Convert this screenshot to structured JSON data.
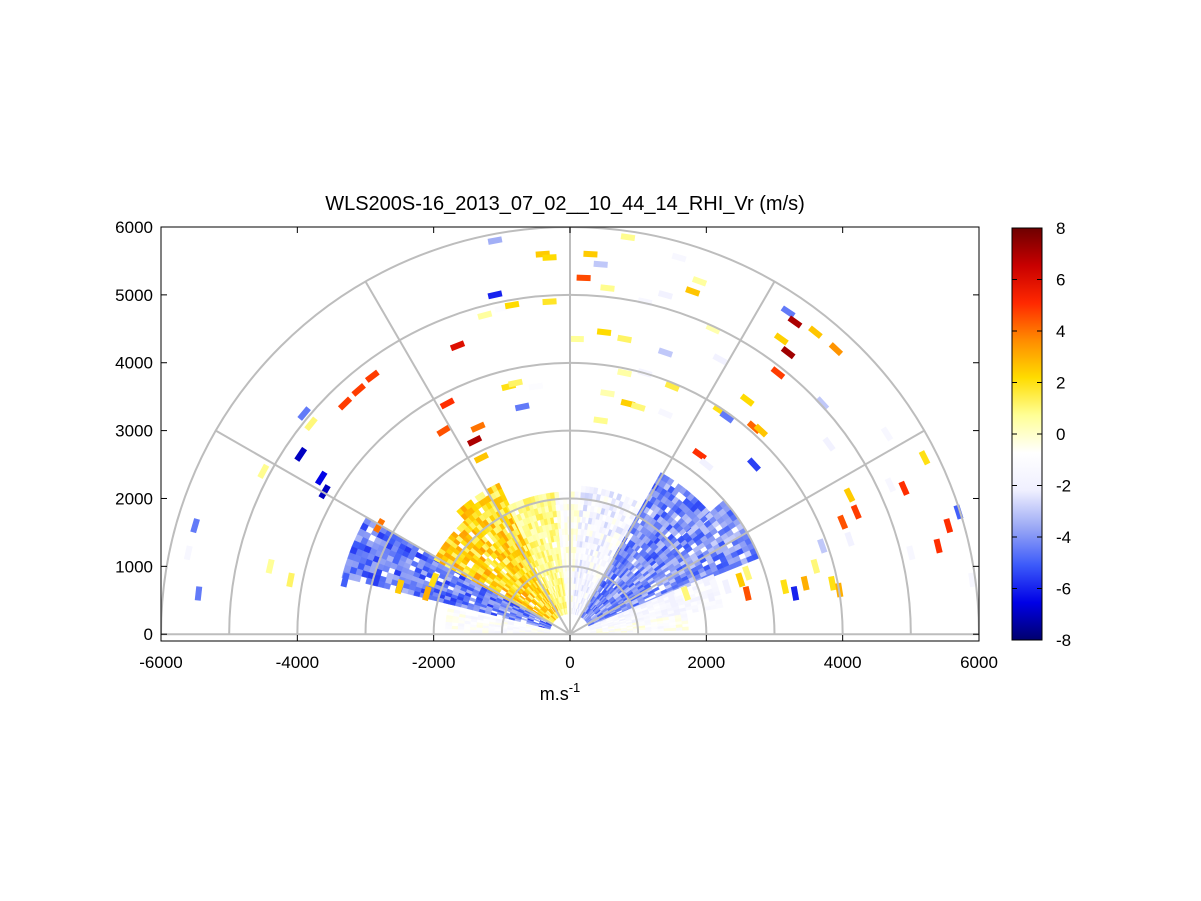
{
  "chart_data": {
    "type": "heatmap",
    "subtype": "polar RHI scan (range-height)",
    "title": "WLS200S-16_2013_07_02__10_44_14_RHI_Vr (m/s)",
    "xlabel_base": "m.s",
    "xlabel_sup": "-1",
    "ylabel": "",
    "xlim": [
      -6000,
      6000
    ],
    "ylim": [
      -100,
      6000
    ],
    "x_ticks": [
      "-6000",
      "-4000",
      "-2000",
      "0",
      "2000",
      "4000",
      "6000"
    ],
    "y_ticks": [
      "0",
      "1000",
      "2000",
      "3000",
      "4000",
      "5000",
      "6000"
    ],
    "range_rings": [
      1000,
      2000,
      3000,
      4000,
      5000,
      6000
    ],
    "spokes_deg": [
      0,
      30,
      60,
      90,
      120,
      150,
      180
    ],
    "grid": true,
    "colorbar": {
      "ticks": [
        "-8",
        "-6",
        "-4",
        "-2",
        "0",
        "2",
        "4",
        "6",
        "8"
      ],
      "range": [
        -8,
        8
      ],
      "colormap": [
        "#00006e",
        "#0000e6",
        "#3c5afa",
        "#9aa8f5",
        "#f0f0ff",
        "#ffffff",
        "#ffff96",
        "#ffdc00",
        "#ff8c00",
        "#ff2800",
        "#c80000",
        "#6e0000"
      ],
      "placement": "right"
    },
    "dense_region": [
      {
        "az_from": 150,
        "az_to": 165,
        "r_from": 300,
        "r_to": 3400,
        "vr": -4.5
      },
      {
        "az_from": 132,
        "az_to": 150,
        "r_from": 300,
        "r_to": 2200,
        "vr": 2.2
      },
      {
        "az_from": 115,
        "az_to": 132,
        "r_from": 300,
        "r_to": 2400,
        "vr": 2.0
      },
      {
        "az_from": 95,
        "az_to": 115,
        "r_from": 300,
        "r_to": 2050,
        "vr": 0.8
      },
      {
        "az_from": 85,
        "az_to": 95,
        "r_from": 300,
        "r_to": 2100,
        "vr": -0.6
      },
      {
        "az_from": 60,
        "az_to": 85,
        "r_from": 300,
        "r_to": 2150,
        "vr": -1.6
      },
      {
        "az_from": 40,
        "az_to": 60,
        "r_from": 300,
        "r_to": 2700,
        "vr": -4.2
      },
      {
        "az_from": 22,
        "az_to": 40,
        "r_from": 300,
        "r_to": 3000,
        "vr": -4.0
      },
      {
        "az_from": 10,
        "az_to": 22,
        "r_from": 300,
        "r_to": 2200,
        "vr": -1.4
      },
      {
        "az_from": 2,
        "az_to": 10,
        "r_from": 300,
        "r_to": 1700,
        "vr": -0.8
      },
      {
        "az_from": 168,
        "az_to": 178,
        "r_from": 300,
        "r_to": 1800,
        "vr": -1.0
      }
    ],
    "points": [
      {
        "x": -5500,
        "y": 1600,
        "vr": -4.5
      },
      {
        "x": -5600,
        "y": 1200,
        "vr": -1.5
      },
      {
        "x": -5450,
        "y": 600,
        "vr": -4.5
      },
      {
        "x": -4500,
        "y": 2400,
        "vr": 0.8
      },
      {
        "x": -4400,
        "y": 1000,
        "vr": 0.7
      },
      {
        "x": -4100,
        "y": 800,
        "vr": 1.2
      },
      {
        "x": -3900,
        "y": 3250,
        "vr": -4.5
      },
      {
        "x": -3950,
        "y": 2650,
        "vr": -7.0
      },
      {
        "x": -3650,
        "y": 2300,
        "vr": -6.5
      },
      {
        "x": -3600,
        "y": 2100,
        "vr": -7.0
      },
      {
        "x": -3800,
        "y": 3100,
        "vr": 1.0
      },
      {
        "x": -3300,
        "y": 3400,
        "vr": 4.8
      },
      {
        "x": -3100,
        "y": 3600,
        "vr": 4.8
      },
      {
        "x": -2900,
        "y": 3800,
        "vr": 4.8
      },
      {
        "x": -2300,
        "y": 1200,
        "vr": -4.5
      },
      {
        "x": -1800,
        "y": 3400,
        "vr": 5.0
      },
      {
        "x": -1850,
        "y": 3000,
        "vr": 4.5
      },
      {
        "x": -1650,
        "y": 4250,
        "vr": 6.0
      },
      {
        "x": -1100,
        "y": 5800,
        "vr": -3.5
      },
      {
        "x": -1100,
        "y": 5000,
        "vr": -6.0
      },
      {
        "x": -1000,
        "y": 4800,
        "vr": -1.0
      },
      {
        "x": -850,
        "y": 4850,
        "vr": 2.2
      },
      {
        "x": -1250,
        "y": 4700,
        "vr": 0.6
      },
      {
        "x": -400,
        "y": 5600,
        "vr": 2.5
      },
      {
        "x": -300,
        "y": 5550,
        "vr": 2.2
      },
      {
        "x": -300,
        "y": 4900,
        "vr": 1.8
      },
      {
        "x": -900,
        "y": 3650,
        "vr": 2.0
      },
      {
        "x": -800,
        "y": 3700,
        "vr": 1.2
      },
      {
        "x": -700,
        "y": 3350,
        "vr": -4.5
      },
      {
        "x": -1350,
        "y": 3050,
        "vr": 4.0
      },
      {
        "x": -1400,
        "y": 2850,
        "vr": 7.0
      },
      {
        "x": -1300,
        "y": 2600,
        "vr": 2.6
      },
      {
        "x": -500,
        "y": 3650,
        "vr": -1.0
      },
      {
        "x": 300,
        "y": 5600,
        "vr": 2.5
      },
      {
        "x": 450,
        "y": 5450,
        "vr": -3.0
      },
      {
        "x": 200,
        "y": 5250,
        "vr": 4.6
      },
      {
        "x": 550,
        "y": 5100,
        "vr": 0.8
      },
      {
        "x": 850,
        "y": 5850,
        "vr": 0.8
      },
      {
        "x": 1600,
        "y": 5550,
        "vr": -1.5
      },
      {
        "x": 2100,
        "y": 4500,
        "vr": 0.4
      },
      {
        "x": 1100,
        "y": 4900,
        "vr": -1.5
      },
      {
        "x": 1400,
        "y": 5000,
        "vr": -2.0
      },
      {
        "x": 1800,
        "y": 5050,
        "vr": 2.6
      },
      {
        "x": 1900,
        "y": 5200,
        "vr": 0.6
      },
      {
        "x": 500,
        "y": 4450,
        "vr": 2.2
      },
      {
        "x": 800,
        "y": 4350,
        "vr": 1.2
      },
      {
        "x": 1400,
        "y": 4150,
        "vr": -3.0
      },
      {
        "x": 100,
        "y": 4350,
        "vr": 0.7
      },
      {
        "x": 800,
        "y": 3850,
        "vr": 0.5
      },
      {
        "x": 1100,
        "y": 3850,
        "vr": -1.8
      },
      {
        "x": 1500,
        "y": 3650,
        "vr": 1.5
      },
      {
        "x": 550,
        "y": 3550,
        "vr": 0.4
      },
      {
        "x": 450,
        "y": 3150,
        "vr": 0.8
      },
      {
        "x": 850,
        "y": 3400,
        "vr": 2.4
      },
      {
        "x": 1000,
        "y": 3350,
        "vr": 1.0
      },
      {
        "x": 1400,
        "y": 3250,
        "vr": -1.5
      },
      {
        "x": 2200,
        "y": 3300,
        "vr": 2.0
      },
      {
        "x": 2300,
        "y": 3200,
        "vr": -4.5
      },
      {
        "x": 1900,
        "y": 2650,
        "vr": 5.0
      },
      {
        "x": 2000,
        "y": 2500,
        "vr": -2.0
      },
      {
        "x": 2600,
        "y": 3450,
        "vr": 2.2
      },
      {
        "x": 2700,
        "y": 3050,
        "vr": 4.2
      },
      {
        "x": 2800,
        "y": 3000,
        "vr": 2.6
      },
      {
        "x": 2200,
        "y": 4050,
        "vr": -2.0
      },
      {
        "x": 3100,
        "y": 4350,
        "vr": 2.4
      },
      {
        "x": 3200,
        "y": 4150,
        "vr": 7.2
      },
      {
        "x": 3200,
        "y": 4750,
        "vr": -4.5
      },
      {
        "x": 3300,
        "y": 4600,
        "vr": 7.0
      },
      {
        "x": 3050,
        "y": 3850,
        "vr": 4.8
      },
      {
        "x": 3600,
        "y": 4450,
        "vr": 2.6
      },
      {
        "x": 3900,
        "y": 4200,
        "vr": 3.5
      },
      {
        "x": 3700,
        "y": 3400,
        "vr": -3.0
      },
      {
        "x": 3800,
        "y": 2800,
        "vr": -2.0
      },
      {
        "x": 2700,
        "y": 2500,
        "vr": -5.5
      },
      {
        "x": 4650,
        "y": 2950,
        "vr": -1.5
      },
      {
        "x": 4700,
        "y": 2200,
        "vr": -1.5
      },
      {
        "x": 5200,
        "y": 2600,
        "vr": 2.0
      },
      {
        "x": 4900,
        "y": 2150,
        "vr": 5.0
      },
      {
        "x": 4100,
        "y": 2050,
        "vr": 2.5
      },
      {
        "x": 4200,
        "y": 1800,
        "vr": 4.8
      },
      {
        "x": 4000,
        "y": 1650,
        "vr": 4.5
      },
      {
        "x": 4100,
        "y": 1400,
        "vr": -2.0
      },
      {
        "x": 5700,
        "y": 1800,
        "vr": -5.0
      },
      {
        "x": 5400,
        "y": 1300,
        "vr": 5.0
      },
      {
        "x": 5550,
        "y": 1600,
        "vr": 5.0
      },
      {
        "x": 5000,
        "y": 1200,
        "vr": -1.5
      },
      {
        "x": 5900,
        "y": 800,
        "vr": -1.5
      },
      {
        "x": 3700,
        "y": 1300,
        "vr": -3.0
      },
      {
        "x": 3600,
        "y": 1000,
        "vr": 1.0
      },
      {
        "x": 3850,
        "y": 750,
        "vr": 2.0
      },
      {
        "x": 3950,
        "y": 650,
        "vr": 3.0
      },
      {
        "x": 3450,
        "y": 750,
        "vr": 3.0
      },
      {
        "x": 3300,
        "y": 600,
        "vr": -6.0
      },
      {
        "x": 3150,
        "y": 700,
        "vr": 2.0
      },
      {
        "x": 2600,
        "y": 900,
        "vr": 1.0
      },
      {
        "x": 2500,
        "y": 800,
        "vr": 2.5
      },
      {
        "x": 2300,
        "y": 700,
        "vr": -2.0
      },
      {
        "x": 2600,
        "y": 600,
        "vr": 4.5
      },
      {
        "x": 1700,
        "y": 600,
        "vr": 1.0
      },
      {
        "x": 1500,
        "y": 500,
        "vr": -2.0
      },
      {
        "x": -2000,
        "y": 800,
        "vr": 2.0
      },
      {
        "x": -2100,
        "y": 600,
        "vr": 3.0
      },
      {
        "x": -2500,
        "y": 700,
        "vr": 2.5
      },
      {
        "x": -3300,
        "y": 800,
        "vr": -5.0
      },
      {
        "x": -2800,
        "y": 1600,
        "vr": 4.0
      }
    ]
  }
}
